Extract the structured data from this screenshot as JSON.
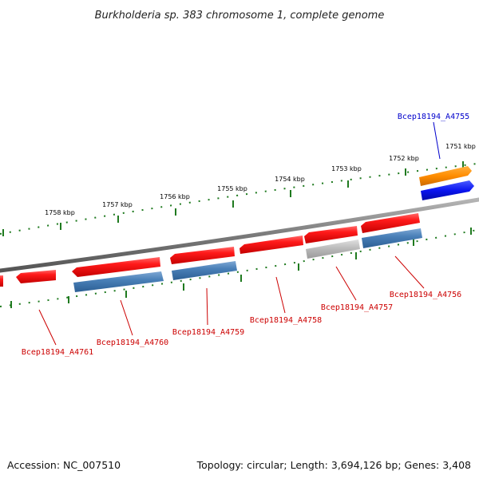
{
  "title": "Burkholderia sp. 383 chromosome 1, complete genome",
  "footer": {
    "accession": "Accession: NC_007510",
    "stats": "Topology: circular; Length: 3,694,126 bp; Genes: 3,408"
  },
  "kbp_ticks": [
    "1758 kbp",
    "1757 kbp",
    "1756 kbp",
    "1755 kbp",
    "1754 kbp",
    "1753 kbp",
    "1752 kbp",
    "1751 kbp"
  ],
  "genes": [
    {
      "locus": "Bcep18194_A4755",
      "color": "#0000cc"
    },
    {
      "locus": "Bcep18194_A4756",
      "color": "#cc0000"
    },
    {
      "locus": "Bcep18194_A4757",
      "color": "#cc0000"
    },
    {
      "locus": "Bcep18194_A4758",
      "color": "#cc0000"
    },
    {
      "locus": "Bcep18194_A4759",
      "color": "#cc0000"
    },
    {
      "locus": "Bcep18194_A4760",
      "color": "#cc0000"
    },
    {
      "locus": "Bcep18194_A4761",
      "color": "#cc0000"
    }
  ],
  "colors": {
    "backbone": "#7a7a7a",
    "tick": "#1f7a1f",
    "forward_cds": "#e8141a",
    "reverse_cds": "#3f77b2",
    "rna": "#b0b0b0",
    "orange_feature": "#ff8c00",
    "blue_feature": "#0a14f0"
  }
}
